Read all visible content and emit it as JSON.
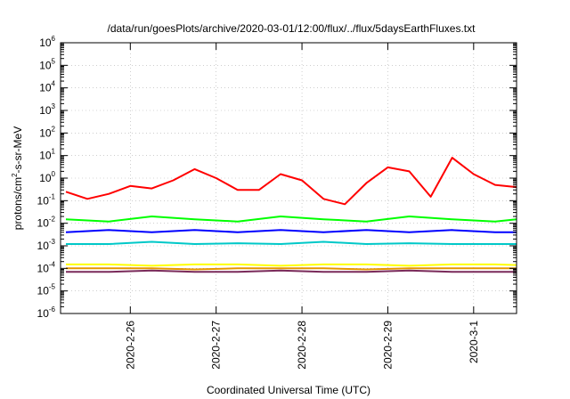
{
  "chart_data": {
    "type": "line",
    "title": "/data/run/goesPlots/archive/2020-03-01/12:00/flux/../flux/5daysEarthFluxes.txt",
    "xlabel": "Coordinated Universal Time (UTC)",
    "ylabel": {
      "prefix": "protons/cm",
      "sup": "2",
      "suffix": "-s-sr-MeV"
    },
    "yscale": "log",
    "ylim": [
      1e-06,
      1000000.0
    ],
    "yticks": [
      {
        "base": "10",
        "exp": "-6"
      },
      {
        "base": "10",
        "exp": "-5"
      },
      {
        "base": "10",
        "exp": "-4"
      },
      {
        "base": "10",
        "exp": "-3"
      },
      {
        "base": "10",
        "exp": "-2"
      },
      {
        "base": "10",
        "exp": "-1"
      },
      {
        "base": "10",
        "exp": "0"
      },
      {
        "base": "10",
        "exp": "1"
      },
      {
        "base": "10",
        "exp": "2"
      },
      {
        "base": "10",
        "exp": "3"
      },
      {
        "base": "10",
        "exp": "4"
      },
      {
        "base": "10",
        "exp": "5"
      },
      {
        "base": "10",
        "exp": "6"
      }
    ],
    "xlim": [
      "2020-02-25 04:30",
      "2020-03-01 12:00"
    ],
    "xticks": [
      "2020-2-26",
      "2020-2-27",
      "2020-2-28",
      "2020-2-29",
      "2020-3-1"
    ],
    "grid": true,
    "legend": "none",
    "series": [
      {
        "color": "#ff0000",
        "x": [
          "2020-02-25 06:00",
          "2020-02-25 12:00",
          "2020-02-25 18:00",
          "2020-02-26 00:00",
          "2020-02-26 06:00",
          "2020-02-26 12:00",
          "2020-02-26 18:00",
          "2020-02-27 00:00",
          "2020-02-27 06:00",
          "2020-02-27 12:00",
          "2020-02-27 18:00",
          "2020-02-28 00:00",
          "2020-02-28 06:00",
          "2020-02-28 12:00",
          "2020-02-28 18:00",
          "2020-02-29 00:00",
          "2020-02-29 06:00",
          "2020-02-29 12:00",
          "2020-02-29 18:00",
          "2020-03-01 00:00",
          "2020-03-01 06:00",
          "2020-03-01 12:00"
        ],
        "y": [
          0.25,
          0.12,
          0.2,
          0.45,
          0.35,
          0.8,
          2.5,
          1.0,
          0.3,
          0.3,
          1.5,
          0.8,
          0.12,
          0.07,
          0.6,
          3.0,
          2.0,
          0.15,
          8.0,
          1.5,
          0.5,
          0.4
        ]
      },
      {
        "color": "#00ff00",
        "x": [
          "2020-02-25 06:00",
          "2020-02-25 18:00",
          "2020-02-26 06:00",
          "2020-02-26 18:00",
          "2020-02-27 06:00",
          "2020-02-27 18:00",
          "2020-02-28 06:00",
          "2020-02-28 18:00",
          "2020-02-29 06:00",
          "2020-02-29 18:00",
          "2020-03-01 06:00",
          "2020-03-01 12:00"
        ],
        "y": [
          0.015,
          0.012,
          0.02,
          0.015,
          0.012,
          0.02,
          0.015,
          0.012,
          0.02,
          0.015,
          0.012,
          0.015
        ]
      },
      {
        "color": "#0000ff",
        "x": [
          "2020-02-25 06:00",
          "2020-02-25 18:00",
          "2020-02-26 06:00",
          "2020-02-26 18:00",
          "2020-02-27 06:00",
          "2020-02-27 18:00",
          "2020-02-28 06:00",
          "2020-02-28 18:00",
          "2020-02-29 06:00",
          "2020-02-29 18:00",
          "2020-03-01 06:00",
          "2020-03-01 12:00"
        ],
        "y": [
          0.004,
          0.005,
          0.004,
          0.005,
          0.004,
          0.005,
          0.004,
          0.005,
          0.004,
          0.005,
          0.004,
          0.004
        ]
      },
      {
        "color": "#00c8c8",
        "x": [
          "2020-02-25 06:00",
          "2020-02-25 18:00",
          "2020-02-26 06:00",
          "2020-02-26 18:00",
          "2020-02-27 06:00",
          "2020-02-27 18:00",
          "2020-02-28 06:00",
          "2020-02-28 18:00",
          "2020-02-29 06:00",
          "2020-02-29 18:00",
          "2020-03-01 06:00",
          "2020-03-01 12:00"
        ],
        "y": [
          0.0012,
          0.0012,
          0.0015,
          0.0012,
          0.0013,
          0.0012,
          0.0015,
          0.0012,
          0.0013,
          0.0012,
          0.0012,
          0.0012
        ]
      },
      {
        "color": "#ffff00",
        "x": [
          "2020-02-25 06:00",
          "2020-02-25 18:00",
          "2020-02-26 06:00",
          "2020-02-26 18:00",
          "2020-02-27 06:00",
          "2020-02-27 18:00",
          "2020-02-28 06:00",
          "2020-02-28 18:00",
          "2020-02-29 06:00",
          "2020-02-29 18:00",
          "2020-03-01 06:00",
          "2020-03-01 12:00"
        ],
        "y": [
          0.00015,
          0.00015,
          0.00013,
          0.00015,
          0.00015,
          0.00013,
          0.00015,
          0.00015,
          0.00013,
          0.00015,
          0.00015,
          0.00014
        ]
      },
      {
        "color": "#e69500",
        "x": [
          "2020-02-25 06:00",
          "2020-02-25 18:00",
          "2020-02-26 06:00",
          "2020-02-26 18:00",
          "2020-02-27 06:00",
          "2020-02-27 18:00",
          "2020-02-28 06:00",
          "2020-02-28 18:00",
          "2020-02-29 06:00",
          "2020-02-29 18:00",
          "2020-03-01 06:00",
          "2020-03-01 12:00"
        ],
        "y": [
          0.0001,
          0.0001,
          0.0001,
          9e-05,
          0.0001,
          0.0001,
          0.0001,
          9e-05,
          0.0001,
          0.0001,
          0.0001,
          0.0001
        ]
      },
      {
        "color": "#7a2a5a",
        "x": [
          "2020-02-25 06:00",
          "2020-02-25 18:00",
          "2020-02-26 06:00",
          "2020-02-26 18:00",
          "2020-02-27 06:00",
          "2020-02-27 18:00",
          "2020-02-28 06:00",
          "2020-02-28 18:00",
          "2020-02-29 06:00",
          "2020-02-29 18:00",
          "2020-03-01 06:00",
          "2020-03-01 12:00"
        ],
        "y": [
          7e-05,
          7e-05,
          8e-05,
          7e-05,
          7e-05,
          8e-05,
          7e-05,
          7e-05,
          8e-05,
          7e-05,
          7e-05,
          7e-05
        ]
      }
    ]
  }
}
